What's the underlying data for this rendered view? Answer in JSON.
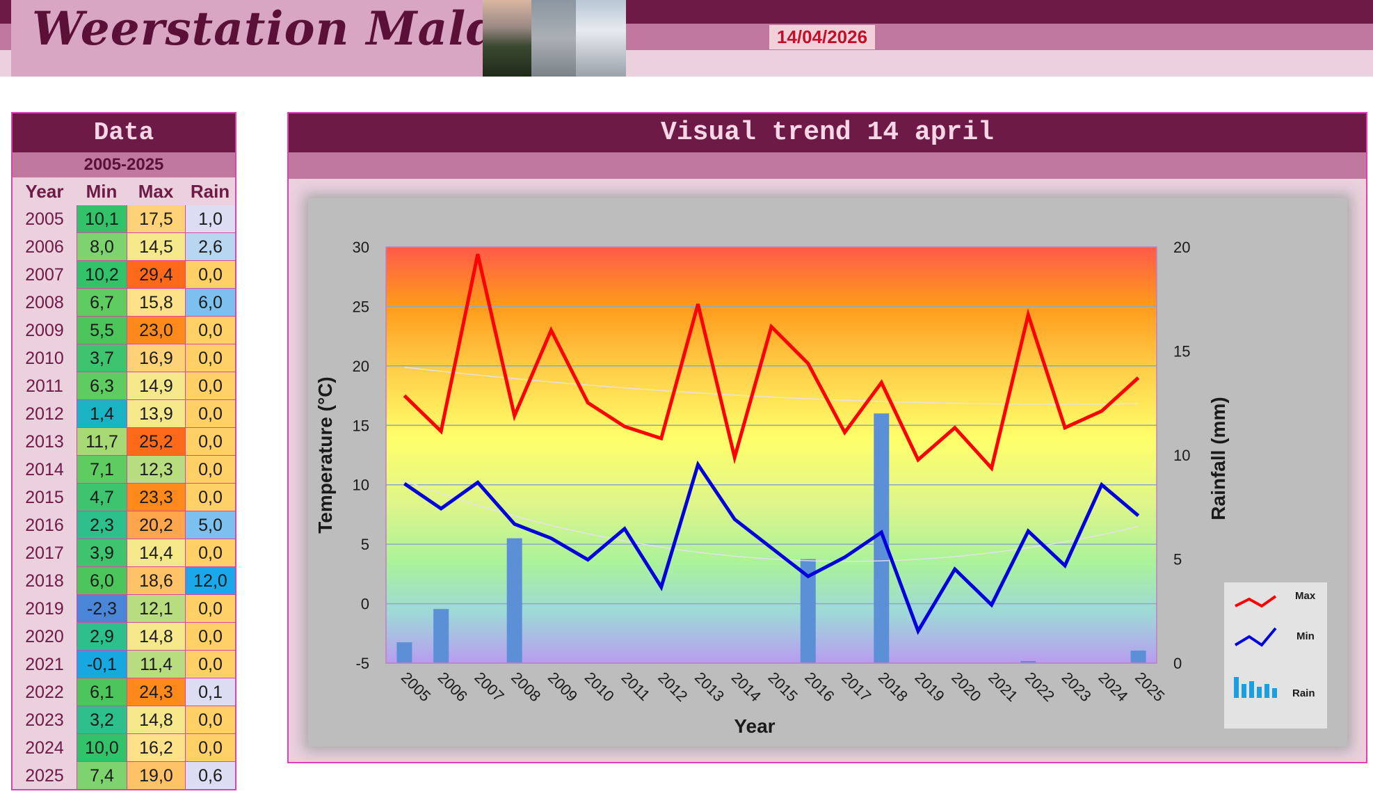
{
  "header": {
    "site_title": "Weerstation Malderen",
    "date": "14/04/2026"
  },
  "table": {
    "title": "Data",
    "period": "2005-2025",
    "columns": [
      "Year",
      "Min",
      "Max",
      "Rain"
    ],
    "rows": [
      {
        "year": "2005",
        "min": "10,1",
        "max": "17,5",
        "rain": "1,0"
      },
      {
        "year": "2006",
        "min": "8,0",
        "max": "14,5",
        "rain": "2,6"
      },
      {
        "year": "2007",
        "min": "10,2",
        "max": "29,4",
        "rain": "0,0"
      },
      {
        "year": "2008",
        "min": "6,7",
        "max": "15,8",
        "rain": "6,0"
      },
      {
        "year": "2009",
        "min": "5,5",
        "max": "23,0",
        "rain": "0,0"
      },
      {
        "year": "2010",
        "min": "3,7",
        "max": "16,9",
        "rain": "0,0"
      },
      {
        "year": "2011",
        "min": "6,3",
        "max": "14,9",
        "rain": "0,0"
      },
      {
        "year": "2012",
        "min": "1,4",
        "max": "13,9",
        "rain": "0,0"
      },
      {
        "year": "2013",
        "min": "11,7",
        "max": "25,2",
        "rain": "0,0"
      },
      {
        "year": "2014",
        "min": "7,1",
        "max": "12,3",
        "rain": "0,0"
      },
      {
        "year": "2015",
        "min": "4,7",
        "max": "23,3",
        "rain": "0,0"
      },
      {
        "year": "2016",
        "min": "2,3",
        "max": "20,2",
        "rain": "5,0"
      },
      {
        "year": "2017",
        "min": "3,9",
        "max": "14,4",
        "rain": "0,0"
      },
      {
        "year": "2018",
        "min": "6,0",
        "max": "18,6",
        "rain": "12,0"
      },
      {
        "year": "2019",
        "min": "-2,3",
        "max": "12,1",
        "rain": "0,0"
      },
      {
        "year": "2020",
        "min": "2,9",
        "max": "14,8",
        "rain": "0,0"
      },
      {
        "year": "2021",
        "min": "-0,1",
        "max": "11,4",
        "rain": "0,0"
      },
      {
        "year": "2022",
        "min": "6,1",
        "max": "24,3",
        "rain": "0,1"
      },
      {
        "year": "2023",
        "min": "3,2",
        "max": "14,8",
        "rain": "0,0"
      },
      {
        "year": "2024",
        "min": "10,0",
        "max": "16,2",
        "rain": "0,0"
      },
      {
        "year": "2025",
        "min": "7,4",
        "max": "19,0",
        "rain": "0,6"
      }
    ]
  },
  "panel": {
    "title": "Visual trend 14 april"
  },
  "chart_data": {
    "type": "line",
    "categories": [
      "2005",
      "2006",
      "2007",
      "2008",
      "2009",
      "2010",
      "2011",
      "2012",
      "2013",
      "2014",
      "2015",
      "2016",
      "2017",
      "2018",
      "2019",
      "2020",
      "2021",
      "2022",
      "2023",
      "2024",
      "2025"
    ],
    "series": [
      {
        "name": "Max",
        "type": "line",
        "axis": "left",
        "color": "#ff0000",
        "values": [
          17.5,
          14.5,
          29.4,
          15.8,
          23.0,
          16.9,
          14.9,
          13.9,
          25.2,
          12.3,
          23.3,
          20.2,
          14.4,
          18.6,
          12.1,
          14.8,
          11.4,
          24.3,
          14.8,
          16.2,
          19.0
        ]
      },
      {
        "name": "Min",
        "type": "line",
        "axis": "left",
        "color": "#0000dd",
        "values": [
          10.1,
          8.0,
          10.2,
          6.7,
          5.5,
          3.7,
          6.3,
          1.4,
          11.7,
          7.1,
          4.7,
          2.3,
          3.9,
          6.0,
          -2.3,
          2.9,
          -0.1,
          6.1,
          3.2,
          10.0,
          7.4
        ]
      },
      {
        "name": "Rain",
        "type": "bar",
        "axis": "right",
        "color": "#5b8fd6",
        "values": [
          1.0,
          2.6,
          0.0,
          6.0,
          0.0,
          0.0,
          0.0,
          0.0,
          0.0,
          0.0,
          0.0,
          5.0,
          0.0,
          12.0,
          0.0,
          0.0,
          0.0,
          0.1,
          0.0,
          0.0,
          0.6
        ]
      }
    ],
    "trendlines": "polynomial trend for Max and Min",
    "xlabel": "Year",
    "ylabel": "Temperature (°C)",
    "y2label": "Rainfall (mm)",
    "ylim": [
      -5,
      30
    ],
    "yticks": [
      "-5",
      "0",
      "5",
      "10",
      "15",
      "20",
      "25",
      "30"
    ],
    "y2lim": [
      0,
      20
    ],
    "y2ticks": [
      "0",
      "5",
      "10",
      "15",
      "20"
    ],
    "grid": true,
    "legend_position": "bottom-right",
    "legend": [
      "Max",
      "Min",
      "Rain"
    ]
  }
}
